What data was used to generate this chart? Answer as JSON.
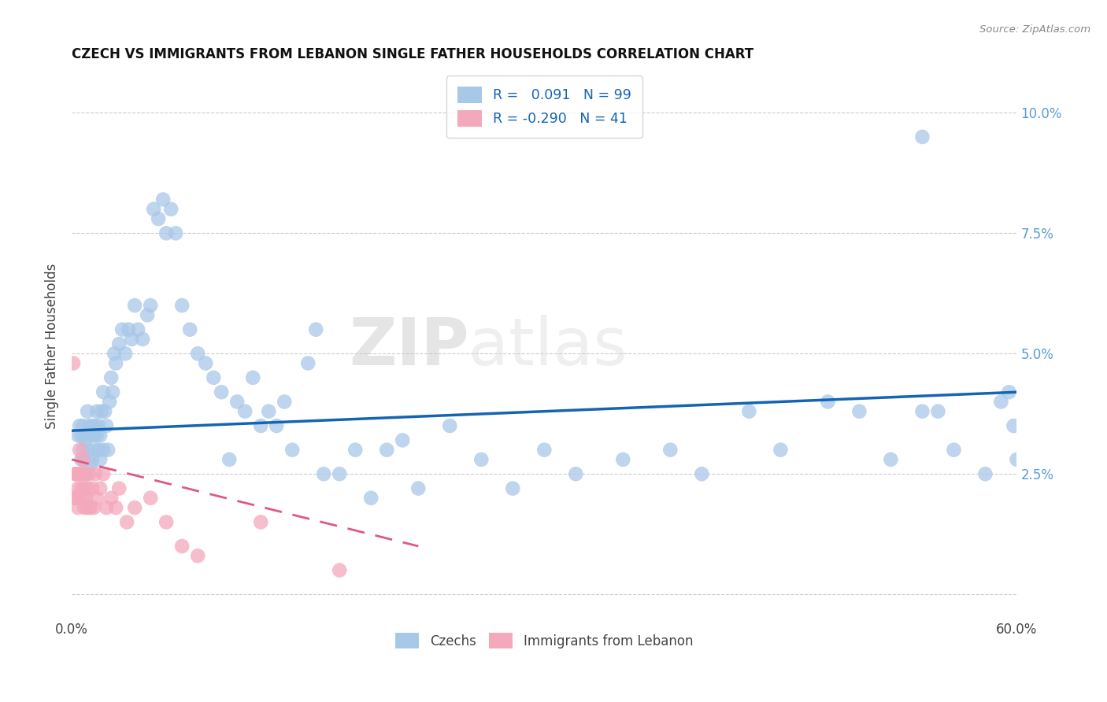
{
  "title": "CZECH VS IMMIGRANTS FROM LEBANON SINGLE FATHER HOUSEHOLDS CORRELATION CHART",
  "source": "Source: ZipAtlas.com",
  "ylabel": "Single Father Households",
  "xlim": [
    0.0,
    0.6
  ],
  "ylim": [
    -0.005,
    0.108
  ],
  "yticks": [
    0.0,
    0.025,
    0.05,
    0.075,
    0.1
  ],
  "ytick_labels_right": [
    "",
    "2.5%",
    "5.0%",
    "7.5%",
    "10.0%"
  ],
  "xtick_labels": [
    "0.0%",
    "60.0%"
  ],
  "czechs_color": "#a8c8e8",
  "lebanon_color": "#f4a8bc",
  "trendline_czech_color": "#1464b4",
  "trendline_lebanon_color": "#e05880",
  "watermark_zip": "ZIP",
  "watermark_atlas": "atlas",
  "czech_x": [
    0.004,
    0.005,
    0.006,
    0.006,
    0.007,
    0.007,
    0.008,
    0.008,
    0.009,
    0.009,
    0.01,
    0.01,
    0.011,
    0.012,
    0.012,
    0.013,
    0.013,
    0.014,
    0.015,
    0.015,
    0.016,
    0.016,
    0.017,
    0.017,
    0.018,
    0.018,
    0.019,
    0.02,
    0.02,
    0.021,
    0.022,
    0.023,
    0.024,
    0.025,
    0.026,
    0.027,
    0.028,
    0.03,
    0.032,
    0.034,
    0.036,
    0.038,
    0.04,
    0.042,
    0.045,
    0.048,
    0.05,
    0.052,
    0.055,
    0.058,
    0.06,
    0.063,
    0.066,
    0.07,
    0.075,
    0.08,
    0.085,
    0.09,
    0.095,
    0.1,
    0.105,
    0.11,
    0.115,
    0.12,
    0.125,
    0.13,
    0.135,
    0.14,
    0.15,
    0.155,
    0.16,
    0.17,
    0.18,
    0.19,
    0.2,
    0.21,
    0.22,
    0.24,
    0.26,
    0.28,
    0.3,
    0.32,
    0.35,
    0.38,
    0.4,
    0.43,
    0.45,
    0.48,
    0.5,
    0.52,
    0.54,
    0.56,
    0.58,
    0.59,
    0.595,
    0.598,
    0.6,
    0.54,
    0.55
  ],
  "czech_y": [
    0.033,
    0.035,
    0.028,
    0.033,
    0.03,
    0.035,
    0.033,
    0.028,
    0.032,
    0.025,
    0.038,
    0.03,
    0.035,
    0.033,
    0.027,
    0.035,
    0.028,
    0.033,
    0.03,
    0.035,
    0.033,
    0.038,
    0.03,
    0.035,
    0.028,
    0.033,
    0.038,
    0.042,
    0.03,
    0.038,
    0.035,
    0.03,
    0.04,
    0.045,
    0.042,
    0.05,
    0.048,
    0.052,
    0.055,
    0.05,
    0.055,
    0.053,
    0.06,
    0.055,
    0.053,
    0.058,
    0.06,
    0.08,
    0.078,
    0.082,
    0.075,
    0.08,
    0.075,
    0.06,
    0.055,
    0.05,
    0.048,
    0.045,
    0.042,
    0.028,
    0.04,
    0.038,
    0.045,
    0.035,
    0.038,
    0.035,
    0.04,
    0.03,
    0.048,
    0.055,
    0.025,
    0.025,
    0.03,
    0.02,
    0.03,
    0.032,
    0.022,
    0.035,
    0.028,
    0.022,
    0.03,
    0.025,
    0.028,
    0.03,
    0.025,
    0.038,
    0.03,
    0.04,
    0.038,
    0.028,
    0.038,
    0.03,
    0.025,
    0.04,
    0.042,
    0.035,
    0.028,
    0.095,
    0.038
  ],
  "lebanon_x": [
    0.001,
    0.002,
    0.002,
    0.003,
    0.003,
    0.004,
    0.004,
    0.004,
    0.005,
    0.005,
    0.005,
    0.006,
    0.006,
    0.007,
    0.007,
    0.008,
    0.008,
    0.009,
    0.009,
    0.01,
    0.01,
    0.011,
    0.012,
    0.013,
    0.014,
    0.015,
    0.016,
    0.018,
    0.02,
    0.022,
    0.025,
    0.028,
    0.03,
    0.035,
    0.04,
    0.05,
    0.06,
    0.07,
    0.08,
    0.12,
    0.17
  ],
  "lebanon_y": [
    0.048,
    0.025,
    0.02,
    0.025,
    0.02,
    0.022,
    0.018,
    0.025,
    0.03,
    0.025,
    0.02,
    0.025,
    0.022,
    0.02,
    0.028,
    0.022,
    0.018,
    0.025,
    0.02,
    0.022,
    0.018,
    0.025,
    0.018,
    0.022,
    0.018,
    0.025,
    0.02,
    0.022,
    0.025,
    0.018,
    0.02,
    0.018,
    0.022,
    0.015,
    0.018,
    0.02,
    0.015,
    0.01,
    0.008,
    0.015,
    0.005
  ],
  "czech_trend_x": [
    0.0,
    0.6
  ],
  "czech_trend_y": [
    0.034,
    0.042
  ],
  "lebanon_trend_x": [
    0.0,
    0.22
  ],
  "lebanon_trend_y": [
    0.028,
    0.01
  ]
}
